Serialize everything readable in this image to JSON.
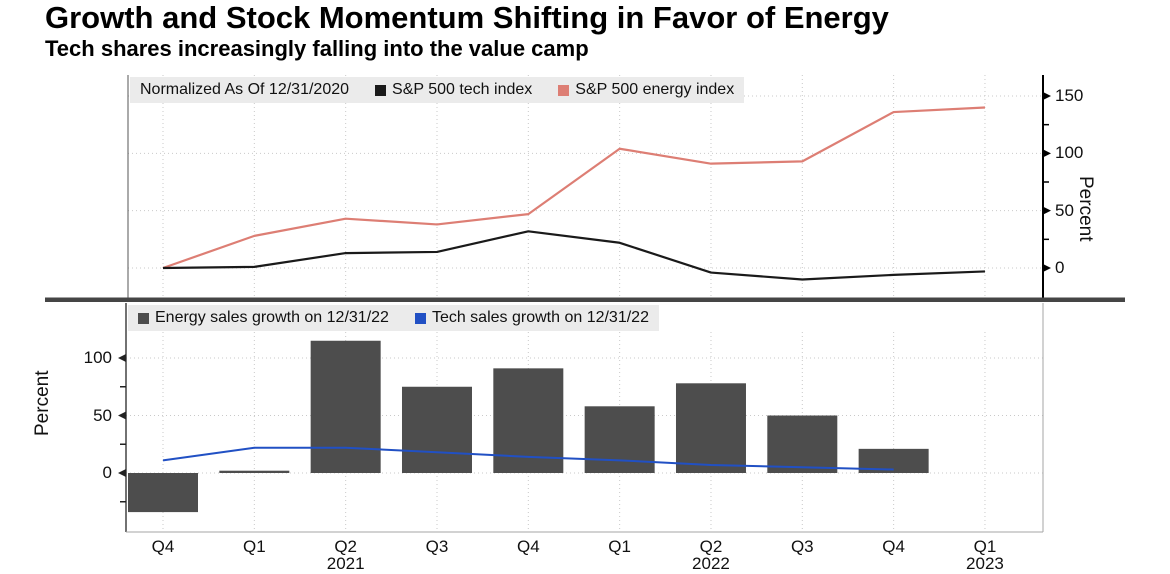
{
  "header": {
    "title": "Growth and Stock Momentum Shifting in Favor of Energy",
    "subtitle": "Tech shares increasingly falling into the value camp"
  },
  "colors": {
    "tech_line": "#1a1a1a",
    "energy_line": "#dd7e74",
    "energy_bar": "#4d4d4d",
    "tech_sales_line": "#2150c4",
    "legend_bg": "#ebebeb",
    "grid": "#c9c9c9",
    "divider": "#454545",
    "light_axis": "#a5a5a5"
  },
  "x_axis": {
    "quarters": [
      "Q4",
      "Q1",
      "Q2",
      "Q3",
      "Q4",
      "Q1",
      "Q2",
      "Q3",
      "Q4",
      "Q1"
    ],
    "years": [
      {
        "index": 2,
        "label": "2021"
      },
      {
        "index": 6,
        "label": "2022"
      },
      {
        "index": 9,
        "label": "2023"
      }
    ]
  },
  "chart_data": [
    {
      "type": "line",
      "panel": "top",
      "note": "Normalized As Of 12/31/2020",
      "ylabel": "Percent",
      "yticks": [
        0,
        50,
        100,
        150
      ],
      "minor_ticks": [
        25,
        75,
        125
      ],
      "ylim": [
        -25,
        168
      ],
      "axis_side": "right",
      "grid": true,
      "legend_position": "top-inside",
      "categories": [
        "Q4 2020",
        "Q1 2021",
        "Q2 2021",
        "Q3 2021",
        "Q4 2021",
        "Q1 2022",
        "Q2 2022",
        "Q3 2022",
        "Q4 2022",
        "Q1 2023"
      ],
      "series": [
        {
          "name": "S&P 500 tech index",
          "color": "#1a1a1a",
          "values": [
            0,
            1,
            13,
            14,
            32,
            22,
            -4,
            -10,
            -6,
            -3
          ]
        },
        {
          "name": "S&P 500 energy index",
          "color": "#dd7e74",
          "values": [
            0,
            28,
            43,
            38,
            47,
            104,
            91,
            93,
            136,
            140
          ]
        }
      ]
    },
    {
      "type": "bar",
      "panel": "bottom",
      "ylabel": "Percent",
      "yticks": [
        0,
        50,
        100
      ],
      "minor_ticks": [
        -25,
        25,
        75
      ],
      "ylim": [
        -50,
        123
      ],
      "axis_side": "left",
      "grid": true,
      "legend_position": "top-inside",
      "categories": [
        "Q4 2020",
        "Q1 2021",
        "Q2 2021",
        "Q3 2021",
        "Q4 2021",
        "Q1 2022",
        "Q2 2022",
        "Q3 2022",
        "Q4 2022",
        "Q1 2023"
      ],
      "series": [
        {
          "name": "Energy sales growth on 12/31/22",
          "kind": "bar",
          "color": "#4d4d4d",
          "values": [
            -34,
            2,
            115,
            75,
            91,
            58,
            78,
            50,
            21,
            null
          ]
        },
        {
          "name": "Tech sales growth on 12/31/22",
          "kind": "line",
          "color": "#2150c4",
          "values": [
            11,
            22,
            22,
            18,
            14,
            11,
            7,
            5,
            3,
            null
          ]
        }
      ]
    }
  ]
}
